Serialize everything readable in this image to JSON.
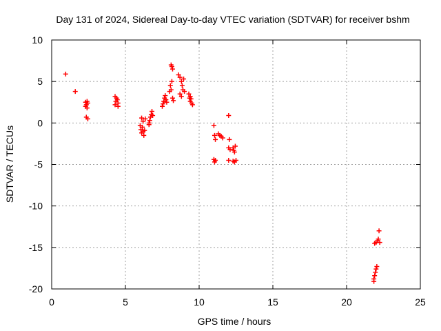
{
  "chart_data": {
    "type": "scatter",
    "title": "Day 131 of 2024, Sidereal Day-to-day VTEC variation (SDTVAR) for receiver bshm",
    "xlabel": "GPS time / hours",
    "ylabel": "SDTVAR / TECUs",
    "xlim": [
      0,
      25
    ],
    "ylim": [
      -20,
      10
    ],
    "xticks": [
      0,
      5,
      10,
      15,
      20,
      25
    ],
    "yticks": [
      -20,
      -15,
      -10,
      -5,
      0,
      5,
      10
    ],
    "grid": true,
    "marker": "+",
    "color": "#ff0000",
    "series": [
      {
        "name": "SDTVAR",
        "points": [
          [
            0.95,
            5.9
          ],
          [
            1.6,
            3.8
          ],
          [
            2.3,
            2.5
          ],
          [
            2.35,
            2.2
          ],
          [
            2.4,
            1.8
          ],
          [
            2.3,
            2.0
          ],
          [
            2.45,
            2.4
          ],
          [
            2.35,
            0.7
          ],
          [
            2.45,
            0.5
          ],
          [
            2.4,
            2.6
          ],
          [
            4.3,
            2.2
          ],
          [
            4.35,
            2.6
          ],
          [
            4.4,
            3.0
          ],
          [
            4.45,
            2.8
          ],
          [
            4.5,
            2.4
          ],
          [
            4.3,
            3.2
          ],
          [
            4.5,
            2.0
          ],
          [
            6.0,
            -0.3
          ],
          [
            6.05,
            -0.8
          ],
          [
            6.1,
            -1.2
          ],
          [
            6.15,
            -0.5
          ],
          [
            6.2,
            0.2
          ],
          [
            6.25,
            -1.5
          ],
          [
            6.3,
            -0.9
          ],
          [
            6.35,
            0.5
          ],
          [
            6.1,
            0.6
          ],
          [
            6.2,
            -1.0
          ],
          [
            6.6,
            0.0
          ],
          [
            6.65,
            0.3
          ],
          [
            6.7,
            0.7
          ],
          [
            6.75,
            1.0
          ],
          [
            6.8,
            1.4
          ],
          [
            6.85,
            0.9
          ],
          [
            6.6,
            -0.2
          ],
          [
            7.5,
            2.0
          ],
          [
            7.55,
            2.3
          ],
          [
            7.6,
            2.6
          ],
          [
            7.65,
            3.0
          ],
          [
            7.7,
            3.3
          ],
          [
            7.75,
            2.8
          ],
          [
            7.8,
            2.5
          ],
          [
            8.1,
            7.0
          ],
          [
            8.15,
            6.8
          ],
          [
            8.2,
            6.5
          ],
          [
            8.05,
            4.5
          ],
          [
            8.1,
            4.0
          ],
          [
            8.15,
            5.0
          ],
          [
            8.2,
            3.0
          ],
          [
            8.25,
            2.7
          ],
          [
            8.0,
            3.8
          ],
          [
            8.6,
            5.8
          ],
          [
            8.7,
            5.5
          ],
          [
            8.8,
            5.0
          ],
          [
            8.85,
            4.5
          ],
          [
            8.9,
            4.0
          ],
          [
            8.7,
            3.5
          ],
          [
            8.8,
            3.2
          ],
          [
            8.95,
            5.3
          ],
          [
            9.0,
            3.8
          ],
          [
            9.3,
            3.5
          ],
          [
            9.35,
            3.0
          ],
          [
            9.4,
            2.6
          ],
          [
            9.45,
            2.9
          ],
          [
            9.5,
            2.4
          ],
          [
            9.55,
            2.2
          ],
          [
            9.4,
            3.2
          ],
          [
            11.0,
            -0.3
          ],
          [
            11.05,
            -1.5
          ],
          [
            11.1,
            -2.0
          ],
          [
            11.0,
            -4.4
          ],
          [
            11.05,
            -4.7
          ],
          [
            11.1,
            -4.5
          ],
          [
            11.3,
            -1.3
          ],
          [
            11.4,
            -1.5
          ],
          [
            11.5,
            -1.6
          ],
          [
            11.6,
            -1.8
          ],
          [
            12.0,
            0.9
          ],
          [
            12.05,
            -2.0
          ],
          [
            12.0,
            -3.0
          ],
          [
            12.1,
            -3.2
          ],
          [
            12.0,
            -4.5
          ],
          [
            12.3,
            -3.0
          ],
          [
            12.35,
            -3.3
          ],
          [
            12.4,
            -3.5
          ],
          [
            12.45,
            -2.8
          ],
          [
            12.3,
            -4.6
          ],
          [
            12.4,
            -4.7
          ],
          [
            12.5,
            -4.5
          ],
          [
            21.9,
            -14.5
          ],
          [
            22.0,
            -14.4
          ],
          [
            22.1,
            -14.2
          ],
          [
            22.2,
            -13.0
          ],
          [
            22.15,
            -14.0
          ],
          [
            22.25,
            -14.4
          ],
          [
            21.85,
            -18.8
          ],
          [
            21.9,
            -18.4
          ],
          [
            21.95,
            -18.0
          ],
          [
            22.0,
            -17.6
          ],
          [
            22.05,
            -17.3
          ],
          [
            21.85,
            -19.1
          ]
        ]
      }
    ]
  }
}
